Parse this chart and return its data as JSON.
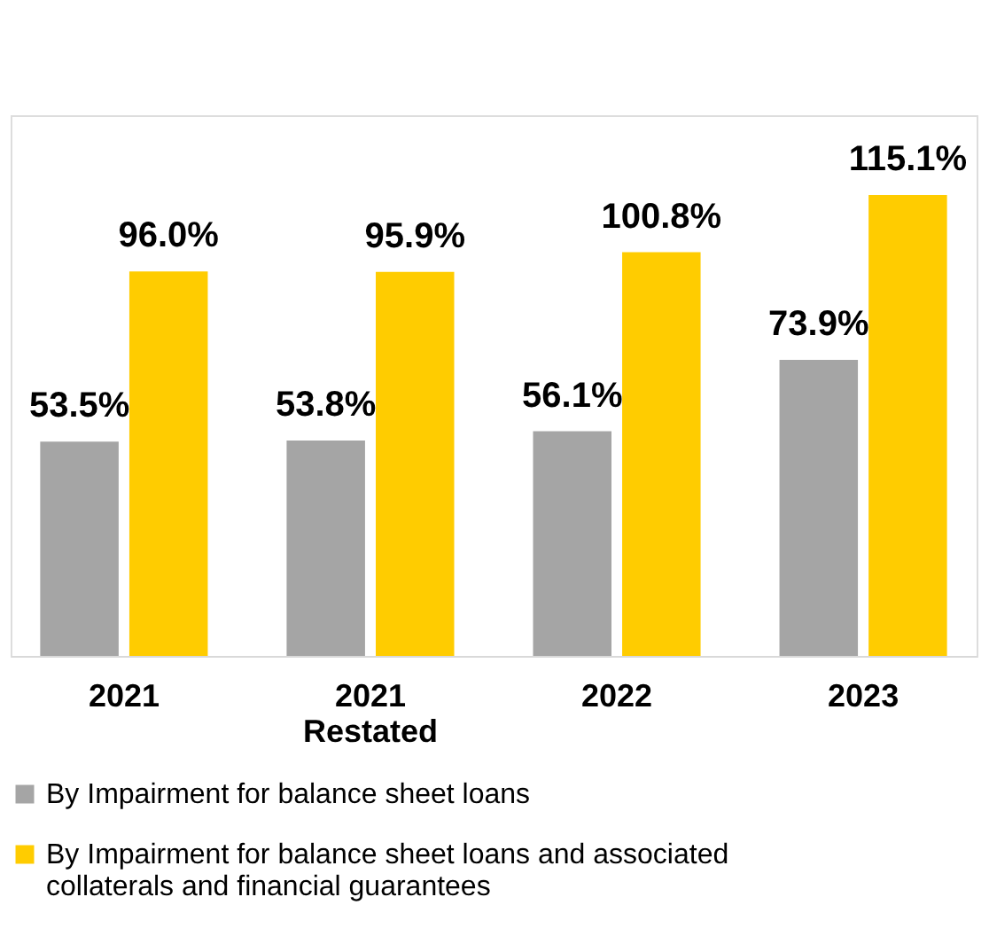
{
  "chart_data": {
    "type": "bar",
    "categories": [
      "2021",
      "2021\nRestated",
      "2022",
      "2023"
    ],
    "series": [
      {
        "name": "By Impairment for balance sheet loans",
        "color": "#a5a5a5",
        "values": [
          53.5,
          53.8,
          56.1,
          73.9
        ],
        "value_labels": [
          "53.5%",
          "53.8%",
          "56.1%",
          "73.9%"
        ]
      },
      {
        "name": "By Impairment for balance sheet loans and associated collaterals and financial guarantees",
        "color": "#ffcc00",
        "values": [
          96.0,
          95.9,
          100.8,
          115.1
        ],
        "value_labels": [
          "96.0%",
          "95.9%",
          "100.8%",
          "115.1%"
        ]
      }
    ],
    "ylim": [
      0,
      135
    ],
    "grid": false,
    "legend": "bottom",
    "tick_labels": "x"
  }
}
